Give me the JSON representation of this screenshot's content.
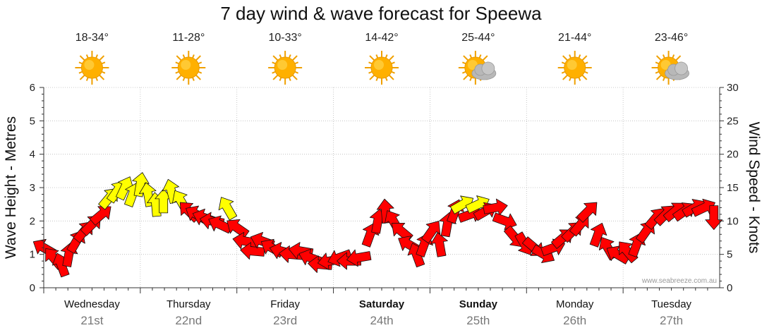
{
  "chart_data": {
    "type": "line",
    "title": "7 day wind & wave forecast for Speewa",
    "ylabel": "Wave Height - Metres",
    "y2label": "Wind Speed - Knots",
    "ylim": [
      0,
      6
    ],
    "y2lim": [
      0,
      30
    ],
    "yticks": [
      "0",
      "1",
      "2",
      "3",
      "4",
      "5",
      "6"
    ],
    "y2ticks": [
      "0",
      "5",
      "10",
      "15",
      "20",
      "25",
      "30"
    ],
    "days": [
      {
        "name": "Wednesday",
        "date": "21st",
        "temp": "18-34°",
        "icon": "sun-icon",
        "bold": false
      },
      {
        "name": "Thursday",
        "date": "22nd",
        "temp": "11-28°",
        "icon": "sun-icon",
        "bold": false
      },
      {
        "name": "Friday",
        "date": "23rd",
        "temp": "10-33°",
        "icon": "sun-icon",
        "bold": false
      },
      {
        "name": "Saturday",
        "date": "24th",
        "temp": "14-42°",
        "icon": "sun-icon",
        "bold": true
      },
      {
        "name": "Sunday",
        "date": "25th",
        "temp": "25-44°",
        "icon": "partly-cloudy-icon",
        "bold": true
      },
      {
        "name": "Monday",
        "date": "26th",
        "temp": "21-44°",
        "icon": "sun-icon",
        "bold": false
      },
      {
        "name": "Tuesday",
        "date": "27th",
        "temp": "23-46°",
        "icon": "partly-cloudy-icon",
        "bold": false
      }
    ],
    "wind_series": {
      "name": "Wind Speed",
      "x_unit": "days from Wednesday 00:00",
      "points": [
        {
          "t": 0.0,
          "kn": 6.0,
          "dir": 120,
          "c": "r"
        },
        {
          "t": 0.1,
          "kn": 4.5,
          "dir": 140,
          "c": "r"
        },
        {
          "t": 0.18,
          "kn": 3.5,
          "dir": 160,
          "c": "r"
        },
        {
          "t": 0.26,
          "kn": 5.0,
          "dir": 190,
          "c": "r"
        },
        {
          "t": 0.34,
          "kn": 7.0,
          "dir": 210,
          "c": "r"
        },
        {
          "t": 0.42,
          "kn": 8.5,
          "dir": 220,
          "c": "r"
        },
        {
          "t": 0.5,
          "kn": 9.5,
          "dir": 225,
          "c": "r"
        },
        {
          "t": 0.6,
          "kn": 11.0,
          "dir": 230,
          "c": "r"
        },
        {
          "t": 0.68,
          "kn": 13.5,
          "dir": 220,
          "c": "y"
        },
        {
          "t": 0.76,
          "kn": 14.5,
          "dir": 215,
          "c": "y"
        },
        {
          "t": 0.84,
          "kn": 15.0,
          "dir": 205,
          "c": "y"
        },
        {
          "t": 0.92,
          "kn": 14.0,
          "dir": 200,
          "c": "y"
        },
        {
          "t": 1.0,
          "kn": 15.5,
          "dir": 190,
          "c": "y"
        },
        {
          "t": 1.08,
          "kn": 14.0,
          "dir": 170,
          "c": "y"
        },
        {
          "t": 1.16,
          "kn": 12.5,
          "dir": 175,
          "c": "y"
        },
        {
          "t": 1.24,
          "kn": 13.0,
          "dir": 180,
          "c": "y"
        },
        {
          "t": 1.32,
          "kn": 14.5,
          "dir": 165,
          "c": "y"
        },
        {
          "t": 1.42,
          "kn": 13.0,
          "dir": 150,
          "c": "y"
        },
        {
          "t": 1.5,
          "kn": 11.5,
          "dir": 135,
          "c": "r"
        },
        {
          "t": 1.58,
          "kn": 11.0,
          "dir": 120,
          "c": "r"
        },
        {
          "t": 1.66,
          "kn": 10.5,
          "dir": 110,
          "c": "r"
        },
        {
          "t": 1.74,
          "kn": 10.0,
          "dir": 100,
          "c": "r"
        },
        {
          "t": 1.82,
          "kn": 9.5,
          "dir": 115,
          "c": "r"
        },
        {
          "t": 1.9,
          "kn": 12.0,
          "dir": 150,
          "c": "y"
        },
        {
          "t": 2.0,
          "kn": 9.0,
          "dir": 125,
          "c": "r"
        },
        {
          "t": 2.08,
          "kn": 7.0,
          "dir": 100,
          "c": "r"
        },
        {
          "t": 2.16,
          "kn": 5.5,
          "dir": 95,
          "c": "r"
        },
        {
          "t": 2.26,
          "kn": 7.0,
          "dir": 110,
          "c": "r"
        },
        {
          "t": 2.36,
          "kn": 6.0,
          "dir": 120,
          "c": "r"
        },
        {
          "t": 2.46,
          "kn": 5.5,
          "dir": 105,
          "c": "r"
        },
        {
          "t": 2.56,
          "kn": 5.0,
          "dir": 95,
          "c": "r"
        },
        {
          "t": 2.66,
          "kn": 5.5,
          "dir": 100,
          "c": "r"
        },
        {
          "t": 2.76,
          "kn": 4.5,
          "dir": 110,
          "c": "r"
        },
        {
          "t": 2.86,
          "kn": 3.5,
          "dir": 95,
          "c": "r"
        },
        {
          "t": 2.96,
          "kn": 4.0,
          "dir": 80,
          "c": "r"
        },
        {
          "t": 3.06,
          "kn": 4.5,
          "dir": 70,
          "c": "r"
        },
        {
          "t": 3.16,
          "kn": 4.0,
          "dir": 90,
          "c": "r"
        },
        {
          "t": 3.26,
          "kn": 4.5,
          "dir": 80,
          "c": "r"
        },
        {
          "t": 3.38,
          "kn": 8.0,
          "dir": 200,
          "c": "r"
        },
        {
          "t": 3.46,
          "kn": 10.0,
          "dir": 190,
          "c": "r"
        },
        {
          "t": 3.54,
          "kn": 11.5,
          "dir": 175,
          "c": "r"
        },
        {
          "t": 3.62,
          "kn": 10.0,
          "dir": 150,
          "c": "r"
        },
        {
          "t": 3.7,
          "kn": 8.5,
          "dir": 130,
          "c": "r"
        },
        {
          "t": 3.78,
          "kn": 6.5,
          "dir": 120,
          "c": "r"
        },
        {
          "t": 3.86,
          "kn": 5.0,
          "dir": 160,
          "c": "r"
        },
        {
          "t": 3.94,
          "kn": 6.5,
          "dir": 200,
          "c": "r"
        },
        {
          "t": 4.02,
          "kn": 8.5,
          "dir": 215,
          "c": "r"
        },
        {
          "t": 4.1,
          "kn": 6.5,
          "dir": 170,
          "c": "r"
        },
        {
          "t": 4.18,
          "kn": 9.5,
          "dir": 190,
          "c": "r"
        },
        {
          "t": 4.26,
          "kn": 11.5,
          "dir": 200,
          "c": "r"
        },
        {
          "t": 4.34,
          "kn": 12.5,
          "dir": 240,
          "c": "y"
        },
        {
          "t": 4.42,
          "kn": 11.0,
          "dir": 250,
          "c": "r"
        },
        {
          "t": 4.5,
          "kn": 12.5,
          "dir": 245,
          "c": "y"
        },
        {
          "t": 4.58,
          "kn": 11.5,
          "dir": 240,
          "c": "r"
        },
        {
          "t": 4.68,
          "kn": 12.0,
          "dir": 260,
          "c": "r"
        },
        {
          "t": 4.78,
          "kn": 10.0,
          "dir": 290,
          "c": "r"
        },
        {
          "t": 4.88,
          "kn": 7.5,
          "dir": 320,
          "c": "r"
        },
        {
          "t": 4.98,
          "kn": 6.5,
          "dir": 330,
          "c": "r"
        },
        {
          "t": 5.08,
          "kn": 6.0,
          "dir": 310,
          "c": "r"
        },
        {
          "t": 5.18,
          "kn": 5.0,
          "dir": 300,
          "c": "r"
        },
        {
          "t": 5.28,
          "kn": 6.0,
          "dir": 250,
          "c": "r"
        },
        {
          "t": 5.38,
          "kn": 7.5,
          "dir": 230,
          "c": "r"
        },
        {
          "t": 5.48,
          "kn": 8.5,
          "dir": 225,
          "c": "r"
        },
        {
          "t": 5.56,
          "kn": 9.5,
          "dir": 220,
          "c": "r"
        },
        {
          "t": 5.64,
          "kn": 11.5,
          "dir": 225,
          "c": "r"
        },
        {
          "t": 5.74,
          "kn": 8.0,
          "dir": 200,
          "c": "r"
        },
        {
          "t": 5.84,
          "kn": 6.0,
          "dir": 150,
          "c": "r"
        },
        {
          "t": 5.94,
          "kn": 5.0,
          "dir": 120,
          "c": "r"
        },
        {
          "t": 6.04,
          "kn": 5.5,
          "dir": 140,
          "c": "r"
        },
        {
          "t": 6.14,
          "kn": 6.5,
          "dir": 200,
          "c": "r"
        },
        {
          "t": 6.24,
          "kn": 8.5,
          "dir": 215,
          "c": "r"
        },
        {
          "t": 6.34,
          "kn": 10.5,
          "dir": 220,
          "c": "r"
        },
        {
          "t": 6.44,
          "kn": 11.0,
          "dir": 225,
          "c": "r"
        },
        {
          "t": 6.54,
          "kn": 11.5,
          "dir": 230,
          "c": "r"
        },
        {
          "t": 6.64,
          "kn": 11.5,
          "dir": 235,
          "c": "r"
        },
        {
          "t": 6.74,
          "kn": 12.0,
          "dir": 240,
          "c": "r"
        },
        {
          "t": 6.84,
          "kn": 12.0,
          "dir": 245,
          "c": "r"
        },
        {
          "t": 6.94,
          "kn": 10.5,
          "dir": 0,
          "c": "r"
        }
      ]
    },
    "colors": {
      "strong_wind": "#ff0000",
      "light_wind": "#ffff00",
      "outline": "#111111",
      "grid": "#bbbbbb",
      "sun": "#ffb000",
      "cloud": "#b8b8b8"
    },
    "grid": true,
    "credit": "www.seabreeze.com.au"
  }
}
